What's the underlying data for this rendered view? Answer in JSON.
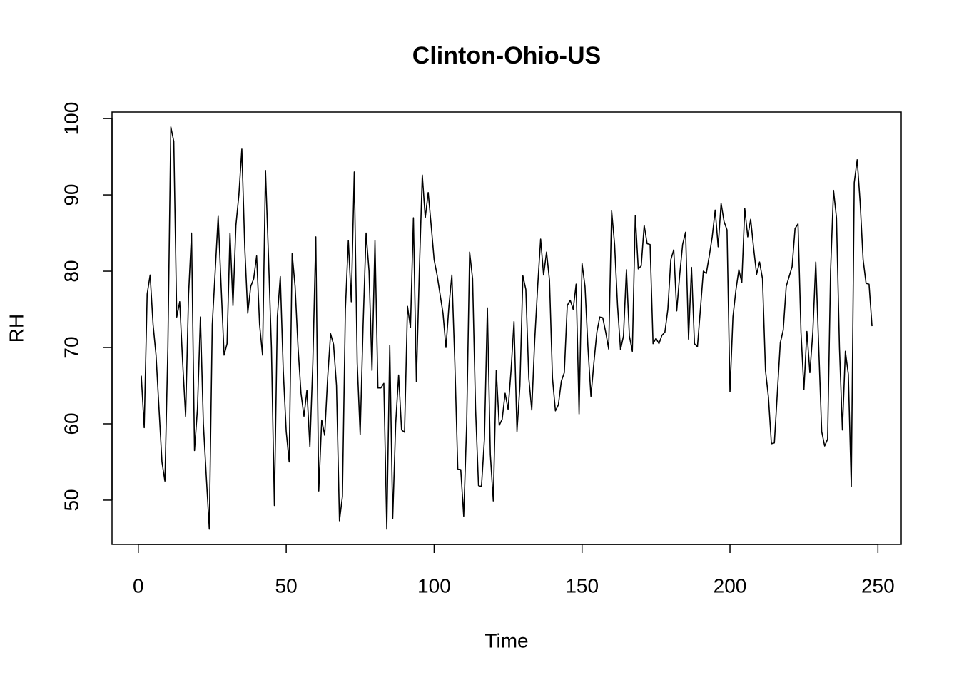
{
  "chart_data": {
    "type": "line",
    "title": "Clinton-Ohio-US",
    "x_label": "Time",
    "y_label": "RH",
    "x": [
      1,
      2,
      3,
      4,
      5,
      6,
      7,
      8,
      9,
      10,
      11,
      12,
      13,
      14,
      15,
      16,
      17,
      18,
      19,
      20,
      21,
      22,
      23,
      24,
      25,
      26,
      27,
      28,
      29,
      30,
      31,
      32,
      33,
      34,
      35,
      36,
      37,
      38,
      39,
      40,
      41,
      42,
      43,
      44,
      45,
      46,
      47,
      48,
      49,
      50,
      51,
      52,
      53,
      54,
      55,
      56,
      57,
      58,
      59,
      60,
      61,
      62,
      63,
      64,
      65,
      66,
      67,
      68,
      69,
      70,
      71,
      72,
      73,
      74,
      75,
      76,
      77,
      78,
      79,
      80,
      81,
      82,
      83,
      84,
      85,
      86,
      87,
      88,
      89,
      90,
      91,
      92,
      93,
      94,
      95,
      96,
      97,
      98,
      99,
      100,
      101,
      102,
      103,
      104,
      105,
      106,
      107,
      108,
      109,
      110,
      111,
      112,
      113,
      114,
      115,
      116,
      117,
      118,
      119,
      120,
      121,
      122,
      123,
      124,
      125,
      126,
      127,
      128,
      129,
      130,
      131,
      132,
      133,
      134,
      135,
      136,
      137,
      138,
      139,
      140,
      141,
      142,
      143,
      144,
      145,
      146,
      147,
      148,
      149,
      150,
      151,
      152,
      153,
      154,
      155,
      156,
      157,
      158,
      159,
      160,
      161,
      162,
      163,
      164,
      165,
      166,
      167,
      168,
      169,
      170,
      171,
      172,
      173,
      174,
      175,
      176,
      177,
      178,
      179,
      180,
      181,
      182,
      183,
      184,
      185,
      186,
      187,
      188,
      189,
      190,
      191,
      192,
      193,
      194,
      195,
      196,
      197,
      198,
      199,
      200,
      201,
      202,
      203,
      204,
      205,
      206,
      207,
      208,
      209,
      210,
      211,
      212,
      213,
      214,
      215,
      216,
      217,
      218,
      219,
      220,
      221,
      222,
      223,
      224,
      225,
      226,
      227,
      228,
      229,
      230,
      231,
      232,
      233,
      234,
      235,
      236,
      237,
      238,
      239,
      240,
      241,
      242,
      243,
      244,
      245,
      246,
      247,
      248
    ],
    "series": [
      {
        "name": "RH",
        "color": "#000000",
        "values": [
          66.3,
          59.5,
          77,
          79.5,
          73,
          69,
          62,
          55,
          52.5,
          70,
          98.9,
          97,
          74,
          76,
          68,
          61,
          77,
          85,
          56.5,
          62,
          74,
          60,
          53,
          46.2,
          73,
          80,
          87.2,
          78,
          69,
          70.5,
          85,
          75.5,
          86,
          90,
          96,
          83,
          74.5,
          78,
          79,
          82,
          73,
          69,
          93.2,
          82,
          70,
          49.3,
          74,
          79.3,
          67,
          59,
          55,
          82.3,
          78,
          70,
          64,
          61,
          64.4,
          57,
          68,
          84.5,
          51.2,
          60.5,
          58.5,
          66,
          71.8,
          70.4,
          65,
          47.3,
          50.5,
          75,
          84,
          76,
          93,
          68,
          58.6,
          73,
          85,
          80,
          67,
          84,
          64.7,
          64.7,
          65.3,
          46.2,
          70.3,
          47.6,
          60,
          66.4,
          59.2,
          58.9,
          75.4,
          72.6,
          87,
          65.5,
          80,
          92.6,
          87,
          90.3,
          86,
          81.5,
          79.5,
          77,
          74.5,
          70,
          75.4,
          79.5,
          68,
          54.1,
          54,
          47.9,
          60,
          82.5,
          79,
          62,
          51.9,
          51.8,
          58,
          75.2,
          56,
          49.9,
          67,
          59.8,
          60.6,
          64,
          61.9,
          67,
          73.4,
          59,
          65,
          79.4,
          77.6,
          66,
          61.8,
          71,
          78,
          84.2,
          79.5,
          82.5,
          78.8,
          66,
          61.7,
          62.5,
          65.6,
          66.7,
          75.5,
          76.2,
          75,
          78.3,
          61.3,
          81,
          78,
          70,
          63.6,
          68,
          72,
          74,
          73.9,
          72,
          69.8,
          87.9,
          83.5,
          75.5,
          69.7,
          71.5,
          80.2,
          71.5,
          69.5,
          87.3,
          80.3,
          80.7,
          86,
          83.6,
          83.5,
          70.5,
          71.2,
          70.5,
          71.6,
          72,
          75,
          81.5,
          82.8,
          74.8,
          79.5,
          83.5,
          85.1,
          71.1,
          80.5,
          70.5,
          70.1,
          75,
          80,
          79.7,
          82,
          84.5,
          88,
          83.2,
          88.9,
          86.5,
          85.4,
          64.2,
          74,
          77.5,
          80.2,
          78.5,
          88.2,
          84.5,
          86.8,
          83,
          79.6,
          81.2,
          79,
          67,
          63.5,
          57.4,
          57.5,
          64,
          70.6,
          72.3,
          78,
          79.3,
          80.6,
          85.6,
          86.2,
          72,
          64.5,
          72.1,
          66.7,
          72,
          81.2,
          70,
          59,
          57.1,
          58,
          80,
          90.6,
          87,
          70,
          59.2,
          69.5,
          66.5,
          51.8,
          91.6,
          94.6,
          89,
          81.5,
          78.4,
          78.3,
          72.8
        ]
      }
    ],
    "xlim": [
      -8.88,
      257.88
    ],
    "ylim": [
      44.2,
      100.85
    ],
    "xticks": [
      0,
      50,
      100,
      150,
      200,
      250
    ],
    "yticks": [
      50,
      60,
      70,
      80,
      90,
      100
    ]
  }
}
